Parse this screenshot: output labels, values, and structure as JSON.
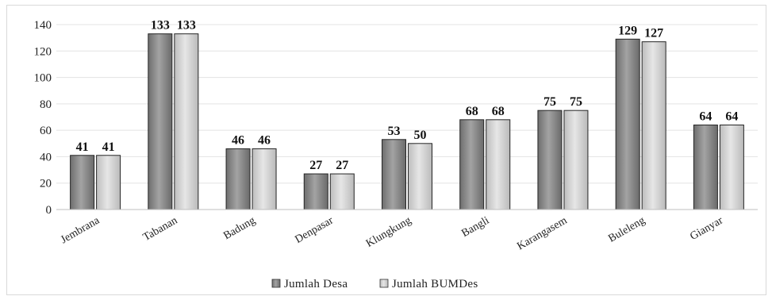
{
  "chart_data": {
    "type": "bar",
    "title": "",
    "xlabel": "",
    "ylabel": "",
    "ylim": [
      0,
      140
    ],
    "yticks": [
      0,
      20,
      40,
      60,
      80,
      100,
      120,
      140
    ],
    "grid": true,
    "legend_position": "bottom",
    "categories": [
      "Jembrana",
      "Tabanan",
      "Badung",
      "Denpasar",
      "Klungkung",
      "Bangli",
      "Karangasem",
      "Buleleng",
      "Gianyar"
    ],
    "series": [
      {
        "name": "Jumlah Desa",
        "values": [
          41,
          133,
          46,
          27,
          53,
          68,
          75,
          129,
          64
        ],
        "color": "#8c8c8c"
      },
      {
        "name": "Jumlah BUMDes",
        "values": [
          41,
          133,
          46,
          27,
          50,
          68,
          75,
          127,
          64
        ],
        "color": "#d4d4d4"
      }
    ]
  }
}
